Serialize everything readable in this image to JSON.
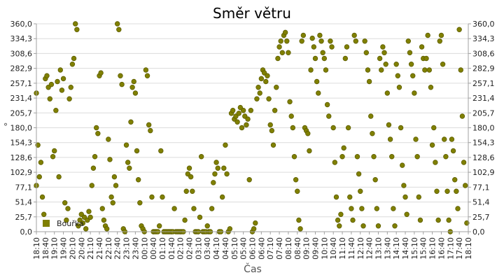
{
  "chart_data": {
    "type": "scatter",
    "title": "Směr větru",
    "xlabel": "Čas",
    "ylabel": "°",
    "colors": {
      "marker": "#808000",
      "marker_edge": "#5e5e00",
      "grid": "#dcdcdc",
      "axis": "#a0a0a0"
    },
    "ylim": [
      0,
      360
    ],
    "y_ticks": [
      "0,0",
      "25,7",
      "51,4",
      "77,1",
      "102,9",
      "128,6",
      "154,3",
      "180,0",
      "205,7",
      "231,4",
      "257,1",
      "282,9",
      "308,6",
      "334,3",
      "360,0"
    ],
    "x_ticks": [
      "18:10",
      "18:40",
      "19:10",
      "19:40",
      "20:10",
      "20:40",
      "21:10",
      "21:40",
      "22:10",
      "22:40",
      "23:10",
      "23:40",
      "00:10",
      "00:40",
      "01:10",
      "01:40",
      "02:10",
      "02:40",
      "03:10",
      "03:40",
      "04:10",
      "04:40",
      "05:10",
      "05:40",
      "06:10",
      "06:40",
      "07:10",
      "07:40",
      "08:10",
      "08:40",
      "09:10",
      "09:40",
      "10:10",
      "10:40",
      "11:10",
      "11:40",
      "12:10",
      "12:40",
      "13:10",
      "13:40",
      "14:10",
      "14:40",
      "15:10",
      "15:40",
      "16:10",
      "16:40",
      "17:10",
      "17:40",
      "18:10"
    ],
    "legend": {
      "label": "Bouřka",
      "position": "bottom-left"
    },
    "series": [
      {
        "marker": "circle",
        "points": [
          [
            "18:10",
            240
          ],
          [
            "18:15",
            150
          ],
          [
            "18:20",
            95
          ],
          [
            "18:25",
            120
          ],
          [
            "18:30",
            60
          ],
          [
            "18:35",
            30
          ],
          [
            "18:40",
            265
          ],
          [
            "18:45",
            270
          ],
          [
            "18:50",
            250
          ],
          [
            "18:55",
            230
          ],
          [
            "19:00",
            255
          ],
          [
            "19:05",
            130
          ],
          [
            "19:10",
            140
          ],
          [
            "19:15",
            210
          ],
          [
            "19:20",
            260
          ],
          [
            "19:25",
            95
          ],
          [
            "19:30",
            280
          ],
          [
            "19:35",
            245
          ],
          [
            "19:40",
            265
          ],
          [
            "19:45",
            50
          ],
          [
            "19:50",
            20
          ],
          [
            "19:55",
            40
          ],
          [
            "20:00",
            230
          ],
          [
            "20:05",
            250
          ],
          [
            "20:10",
            290
          ],
          [
            "20:15",
            300
          ],
          [
            "20:20",
            360
          ],
          [
            "20:25",
            350
          ],
          [
            "20:30",
            10
          ],
          [
            "20:35",
            20
          ],
          [
            "20:40",
            30
          ],
          [
            "20:45",
            15
          ],
          [
            "20:50",
            25
          ],
          [
            "20:55",
            5
          ],
          [
            "21:00",
            20
          ],
          [
            "21:05",
            35
          ],
          [
            "21:10",
            25
          ],
          [
            "21:15",
            80
          ],
          [
            "21:20",
            110
          ],
          [
            "21:25",
            130
          ],
          [
            "21:30",
            180
          ],
          [
            "21:35",
            170
          ],
          [
            "21:40",
            270
          ],
          [
            "21:45",
            275
          ],
          [
            "21:50",
            40
          ],
          [
            "21:55",
            20
          ],
          [
            "22:00",
            10
          ],
          [
            "22:05",
            5
          ],
          [
            "22:10",
            160
          ],
          [
            "22:15",
            125
          ],
          [
            "22:20",
            60
          ],
          [
            "22:25",
            50
          ],
          [
            "22:30",
            95
          ],
          [
            "22:35",
            80
          ],
          [
            "22:40",
            360
          ],
          [
            "22:45",
            350
          ],
          [
            "22:50",
            270
          ],
          [
            "22:55",
            255
          ],
          [
            "23:00",
            5
          ],
          [
            "23:05",
            0
          ],
          [
            "23:10",
            150
          ],
          [
            "23:15",
            120
          ],
          [
            "23:20",
            110
          ],
          [
            "23:25",
            190
          ],
          [
            "23:30",
            250
          ],
          [
            "23:35",
            260
          ],
          [
            "23:40",
            240
          ],
          [
            "23:45",
            140
          ],
          [
            "23:50",
            90
          ],
          [
            "23:55",
            50
          ],
          [
            "00:00",
            10
          ],
          [
            "00:05",
            5
          ],
          [
            "00:10",
            0
          ],
          [
            "00:15",
            280
          ],
          [
            "00:20",
            270
          ],
          [
            "00:25",
            185
          ],
          [
            "00:30",
            175
          ],
          [
            "00:35",
            60
          ],
          [
            "00:40",
            0
          ],
          [
            "00:45",
            0
          ],
          [
            "00:50",
            0
          ],
          [
            "00:55",
            0
          ],
          [
            "01:00",
            10
          ],
          [
            "01:05",
            140
          ],
          [
            "01:10",
            60
          ],
          [
            "01:15",
            0
          ],
          [
            "01:20",
            0
          ],
          [
            "01:25",
            0
          ],
          [
            "01:30",
            0
          ],
          [
            "01:35",
            0
          ],
          [
            "01:40",
            0
          ],
          [
            "01:45",
            0
          ],
          [
            "01:50",
            40
          ],
          [
            "01:55",
            0
          ],
          [
            "02:00",
            0
          ],
          [
            "02:05",
            0
          ],
          [
            "02:10",
            0
          ],
          [
            "02:15",
            0
          ],
          [
            "02:20",
            0
          ],
          [
            "02:25",
            20
          ],
          [
            "02:30",
            70
          ],
          [
            "02:35",
            100
          ],
          [
            "02:40",
            110
          ],
          [
            "02:45",
            95
          ],
          [
            "02:50",
            70
          ],
          [
            "02:55",
            40
          ],
          [
            "03:00",
            0
          ],
          [
            "03:05",
            0
          ],
          [
            "03:10",
            0
          ],
          [
            "03:15",
            25
          ],
          [
            "03:20",
            130
          ],
          [
            "03:25",
            0
          ],
          [
            "03:30",
            0
          ],
          [
            "03:35",
            0
          ],
          [
            "03:40",
            10
          ],
          [
            "03:45",
            0
          ],
          [
            "03:50",
            0
          ],
          [
            "03:55",
            40
          ],
          [
            "04:00",
            85
          ],
          [
            "04:05",
            100
          ],
          [
            "04:10",
            120
          ],
          [
            "04:15",
            110
          ],
          [
            "04:20",
            0
          ],
          [
            "04:25",
            0
          ],
          [
            "04:30",
            60
          ],
          [
            "04:35",
            110
          ],
          [
            "04:40",
            150
          ],
          [
            "04:45",
            100
          ],
          [
            "04:50",
            0
          ],
          [
            "04:55",
            5
          ],
          [
            "05:00",
            205
          ],
          [
            "05:05",
            210
          ],
          [
            "05:10",
            195
          ],
          [
            "05:15",
            200
          ],
          [
            "05:20",
            190
          ],
          [
            "05:25",
            205
          ],
          [
            "05:30",
            215
          ],
          [
            "05:35",
            180
          ],
          [
            "05:40",
            210
          ],
          [
            "05:45",
            200
          ],
          [
            "05:50",
            185
          ],
          [
            "05:55",
            195
          ],
          [
            "06:00",
            90
          ],
          [
            "06:05",
            210
          ],
          [
            "06:10",
            0
          ],
          [
            "06:15",
            5
          ],
          [
            "06:20",
            15
          ],
          [
            "06:25",
            230
          ],
          [
            "06:30",
            250
          ],
          [
            "06:35",
            240
          ],
          [
            "06:40",
            265
          ],
          [
            "06:45",
            280
          ],
          [
            "06:50",
            275
          ],
          [
            "06:55",
            260
          ],
          [
            "07:00",
            270
          ],
          [
            "07:05",
            230
          ],
          [
            "07:10",
            185
          ],
          [
            "07:15",
            175
          ],
          [
            "07:20",
            150
          ],
          [
            "07:25",
            210
          ],
          [
            "07:30",
            250
          ],
          [
            "07:35",
            300
          ],
          [
            "07:40",
            320
          ],
          [
            "07:45",
            330
          ],
          [
            "07:50",
            310
          ],
          [
            "07:55",
            340
          ],
          [
            "08:00",
            345
          ],
          [
            "08:05",
            330
          ],
          [
            "08:10",
            310
          ],
          [
            "08:15",
            225
          ],
          [
            "08:20",
            200
          ],
          [
            "08:25",
            180
          ],
          [
            "08:30",
            130
          ],
          [
            "08:35",
            90
          ],
          [
            "08:40",
            70
          ],
          [
            "08:45",
            20
          ],
          [
            "08:50",
            5
          ],
          [
            "08:55",
            330
          ],
          [
            "09:00",
            340
          ],
          [
            "09:05",
            180
          ],
          [
            "09:10",
            175
          ],
          [
            "09:15",
            170
          ],
          [
            "09:20",
            140
          ],
          [
            "09:25",
            280
          ],
          [
            "09:30",
            335
          ],
          [
            "09:35",
            320
          ],
          [
            "09:40",
            300
          ],
          [
            "09:45",
            260
          ],
          [
            "09:50",
            240
          ],
          [
            "09:55",
            340
          ],
          [
            "10:00",
            330
          ],
          [
            "10:05",
            310
          ],
          [
            "10:10",
            300
          ],
          [
            "10:15",
            280
          ],
          [
            "10:20",
            220
          ],
          [
            "10:25",
            200
          ],
          [
            "10:30",
            330
          ],
          [
            "10:35",
            320
          ],
          [
            "10:40",
            180
          ],
          [
            "10:45",
            120
          ],
          [
            "10:50",
            60
          ],
          [
            "10:55",
            20
          ],
          [
            "11:00",
            10
          ],
          [
            "11:05",
            30
          ],
          [
            "11:10",
            130
          ],
          [
            "11:15",
            145
          ],
          [
            "11:20",
            300
          ],
          [
            "11:25",
            320
          ],
          [
            "11:30",
            180
          ],
          [
            "11:35",
            60
          ],
          [
            "11:40",
            40
          ],
          [
            "11:45",
            20
          ],
          [
            "11:50",
            340
          ],
          [
            "11:55",
            330
          ],
          [
            "12:00",
            130
          ],
          [
            "12:05",
            100
          ],
          [
            "12:10",
            70
          ],
          [
            "12:15",
            40
          ],
          [
            "12:20",
            10
          ],
          [
            "12:25",
            330
          ],
          [
            "12:30",
            310
          ],
          [
            "12:35",
            280
          ],
          [
            "12:40",
            260
          ],
          [
            "12:45",
            200
          ],
          [
            "12:50",
            170
          ],
          [
            "12:55",
            130
          ],
          [
            "13:00",
            90
          ],
          [
            "13:05",
            40
          ],
          [
            "13:10",
            10
          ],
          [
            "13:15",
            300
          ],
          [
            "13:20",
            280
          ],
          [
            "13:25",
            320
          ],
          [
            "13:30",
            310
          ],
          [
            "13:35",
            290
          ],
          [
            "13:40",
            240
          ],
          [
            "13:45",
            185
          ],
          [
            "13:50",
            160
          ],
          [
            "13:55",
            130
          ],
          [
            "14:00",
            40
          ],
          [
            "14:05",
            10
          ],
          [
            "14:10",
            290
          ],
          [
            "14:15",
            270
          ],
          [
            "14:20",
            250
          ],
          [
            "14:25",
            180
          ],
          [
            "14:30",
            115
          ],
          [
            "14:35",
            80
          ],
          [
            "14:40",
            60
          ],
          [
            "14:45",
            30
          ],
          [
            "14:50",
            330
          ],
          [
            "14:55",
            310
          ],
          [
            "15:00",
            290
          ],
          [
            "15:05",
            270
          ],
          [
            "15:10",
            240
          ],
          [
            "15:15",
            160
          ],
          [
            "15:20",
            130
          ],
          [
            "15:25",
            60
          ],
          [
            "15:30",
            20
          ],
          [
            "15:35",
            320
          ],
          [
            "15:40",
            300
          ],
          [
            "15:45",
            280
          ],
          [
            "15:50",
            300
          ],
          [
            "15:55",
            340
          ],
          [
            "16:00",
            280
          ],
          [
            "16:05",
            250
          ],
          [
            "16:10",
            150
          ],
          [
            "16:15",
            180
          ],
          [
            "16:20",
            120
          ],
          [
            "16:25",
            70
          ],
          [
            "16:30",
            20
          ],
          [
            "16:35",
            330
          ],
          [
            "16:40",
            340
          ],
          [
            "16:45",
            290
          ],
          [
            "16:50",
            160
          ],
          [
            "16:55",
            130
          ],
          [
            "17:00",
            70
          ],
          [
            "17:05",
            20
          ],
          [
            "17:10",
            0
          ],
          [
            "17:15",
            160
          ],
          [
            "17:20",
            140
          ],
          [
            "17:25",
            90
          ],
          [
            "17:30",
            70
          ],
          [
            "17:35",
            40
          ],
          [
            "17:40",
            350
          ],
          [
            "17:45",
            280
          ],
          [
            "17:50",
            200
          ],
          [
            "17:55",
            120
          ],
          [
            "18:00",
            80
          ],
          [
            "18:05",
            15
          ],
          [
            "18:10",
            80
          ]
        ]
      }
    ]
  }
}
